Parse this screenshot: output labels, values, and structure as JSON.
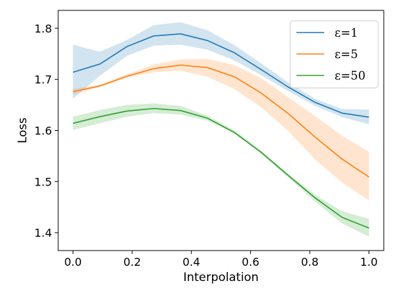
{
  "chart_data": {
    "type": "line",
    "xlabel": "Interpolation",
    "ylabel": "Loss",
    "xlim": [
      -0.05,
      1.05
    ],
    "ylim": [
      1.365,
      1.835
    ],
    "xticks": [
      0.0,
      0.2,
      0.4,
      0.6,
      0.8,
      1.0
    ],
    "xtick_labels": [
      "0.0",
      "0.2",
      "0.4",
      "0.6",
      "0.8",
      "1.0"
    ],
    "yticks": [
      1.4,
      1.5,
      1.6,
      1.7,
      1.8
    ],
    "ytick_labels": [
      "1.4",
      "1.5",
      "1.6",
      "1.7",
      "1.8"
    ],
    "grid": false,
    "legend_position": "top-right",
    "x": [
      0.0,
      0.0909,
      0.1818,
      0.2727,
      0.3636,
      0.4545,
      0.5455,
      0.6364,
      0.7273,
      0.8182,
      0.9091,
      1.0
    ],
    "series": [
      {
        "name": "ε=1",
        "color": "#1f77b4",
        "values": [
          1.714,
          1.73,
          1.764,
          1.785,
          1.789,
          1.776,
          1.752,
          1.719,
          1.685,
          1.655,
          1.634,
          1.626
        ],
        "lower": [
          1.662,
          1.707,
          1.746,
          1.766,
          1.768,
          1.758,
          1.737,
          1.708,
          1.677,
          1.648,
          1.626,
          1.612
        ],
        "upper": [
          1.768,
          1.754,
          1.777,
          1.806,
          1.812,
          1.796,
          1.767,
          1.731,
          1.694,
          1.662,
          1.642,
          1.641
        ]
      },
      {
        "name": "ε=5",
        "color": "#ff7f0e",
        "values": [
          1.676,
          1.687,
          1.706,
          1.721,
          1.728,
          1.723,
          1.705,
          1.673,
          1.633,
          1.587,
          1.544,
          1.509
        ],
        "lower": [
          1.67,
          1.685,
          1.703,
          1.714,
          1.717,
          1.705,
          1.681,
          1.645,
          1.599,
          1.543,
          1.498,
          1.463
        ],
        "upper": [
          1.681,
          1.69,
          1.71,
          1.729,
          1.739,
          1.74,
          1.728,
          1.702,
          1.665,
          1.628,
          1.59,
          1.558
        ]
      },
      {
        "name": "ε=50",
        "color": "#2ca02c",
        "values": [
          1.614,
          1.627,
          1.638,
          1.643,
          1.639,
          1.624,
          1.596,
          1.557,
          1.512,
          1.468,
          1.43,
          1.409
        ],
        "lower": [
          1.601,
          1.614,
          1.627,
          1.634,
          1.631,
          1.619,
          1.594,
          1.554,
          1.508,
          1.461,
          1.418,
          1.392
        ],
        "upper": [
          1.627,
          1.64,
          1.65,
          1.653,
          1.648,
          1.629,
          1.6,
          1.56,
          1.515,
          1.474,
          1.442,
          1.427
        ]
      }
    ]
  }
}
